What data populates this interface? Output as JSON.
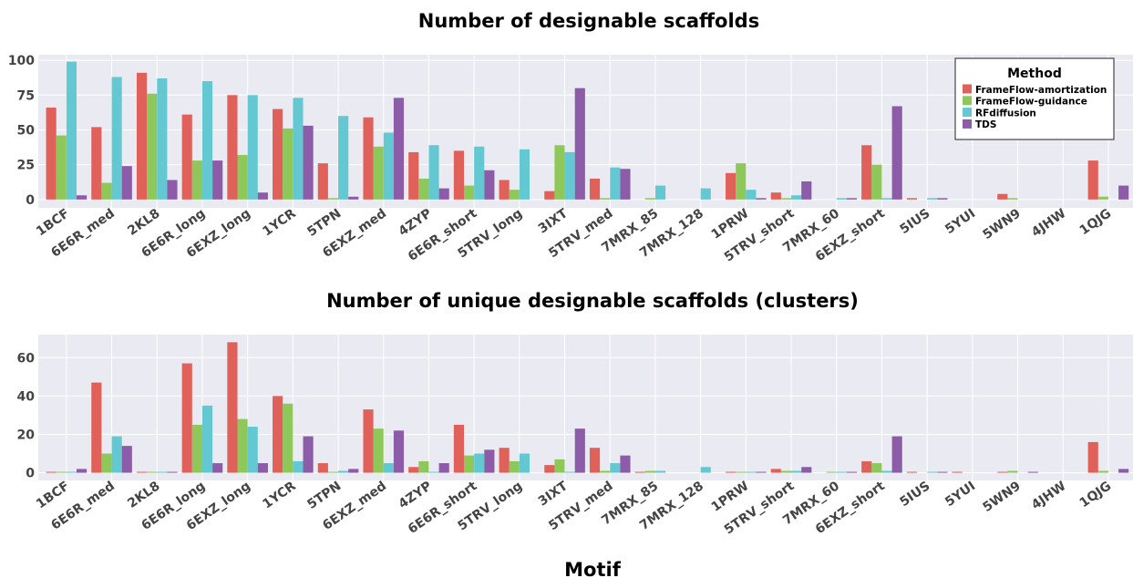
{
  "chart_data": [
    {
      "type": "bar",
      "title": "Number of designable scaffolds",
      "xlabel": "",
      "ylabel": "",
      "ylim": [
        -6,
        104
      ],
      "yticks": [
        0,
        25,
        50,
        75,
        100
      ],
      "grid": true,
      "legend": {
        "title": "Method",
        "placement": "top-right"
      },
      "categories": [
        "1BCF",
        "6E6R_med",
        "2KL8",
        "6E6R_long",
        "6EXZ_long",
        "1YCR",
        "5TPN",
        "6EXZ_med",
        "4ZYP",
        "6E6R_short",
        "5TRV_long",
        "3IXT",
        "5TRV_med",
        "7MRX_85",
        "7MRX_128",
        "1PRW",
        "5TRV_short",
        "7MRX_60",
        "6EXZ_short",
        "5IUS",
        "5YUI",
        "5WN9",
        "4JHW",
        "1QJG"
      ],
      "series": [
        {
          "name": "FrameFlow-amortization",
          "color": "#e0605a",
          "values": [
            66,
            52,
            91,
            61,
            75,
            65,
            26,
            59,
            34,
            35,
            14,
            6,
            15,
            0,
            0,
            19,
            5,
            0,
            39,
            1,
            0,
            4,
            0,
            28
          ]
        },
        {
          "name": "FrameFlow-guidance",
          "color": "#8fc85a",
          "values": [
            46,
            12,
            76,
            28,
            32,
            51,
            1,
            38,
            15,
            10,
            7,
            39,
            1,
            1,
            0,
            26,
            1,
            0,
            25,
            0,
            0,
            1,
            0,
            2
          ]
        },
        {
          "name": "RFdiffusion",
          "color": "#63c8d1",
          "values": [
            99,
            88,
            87,
            85,
            75,
            73,
            60,
            48,
            39,
            38,
            36,
            34,
            23,
            10,
            8,
            7,
            3,
            1,
            1,
            1,
            0,
            0,
            0,
            0
          ]
        },
        {
          "name": "TDS",
          "color": "#8d5ca8",
          "values": [
            3,
            24,
            14,
            28,
            5,
            53,
            2,
            73,
            8,
            21,
            0,
            80,
            22,
            0,
            0,
            1,
            13,
            1,
            67,
            1,
            0,
            0,
            0,
            10
          ]
        }
      ]
    },
    {
      "type": "bar",
      "title": "Number of unique designable scaffolds (clusters)",
      "xlabel": "Motif",
      "ylabel": "",
      "ylim": [
        -4,
        72
      ],
      "yticks": [
        0,
        20,
        40,
        60
      ],
      "grid": true,
      "categories": [
        "1BCF",
        "6E6R_med",
        "2KL8",
        "6E6R_long",
        "6EXZ_long",
        "1YCR",
        "5TPN",
        "6EXZ_med",
        "4ZYP",
        "6E6R_short",
        "5TRV_long",
        "3IXT",
        "5TRV_med",
        "7MRX_85",
        "7MRX_128",
        "1PRW",
        "5TRV_short",
        "7MRX_60",
        "6EXZ_short",
        "5IUS",
        "5YUI",
        "5WN9",
        "4JHW",
        "1QJG"
      ],
      "series": [
        {
          "name": "FrameFlow-amortization",
          "color": "#e0605a",
          "values": [
            0.5,
            47,
            0.5,
            57,
            68,
            40,
            5,
            33,
            3,
            25,
            13,
            4,
            13,
            0.5,
            0,
            0.5,
            2,
            0,
            6,
            0.5,
            0.5,
            0.5,
            0,
            16
          ]
        },
        {
          "name": "FrameFlow-guidance",
          "color": "#8fc85a",
          "values": [
            0.5,
            10,
            0.5,
            25,
            28,
            36,
            0.5,
            23,
            6,
            9,
            6,
            7,
            1,
            1,
            0,
            0.5,
            1,
            0.5,
            5,
            0,
            0,
            1,
            0,
            1
          ]
        },
        {
          "name": "RFdiffusion",
          "color": "#63c8d1",
          "values": [
            0.5,
            19,
            0.5,
            35,
            24,
            6,
            1,
            5,
            0.5,
            10,
            10,
            0.5,
            5,
            1,
            3,
            0.5,
            1,
            0.5,
            1,
            0.5,
            0,
            0,
            0,
            0
          ]
        },
        {
          "name": "TDS",
          "color": "#8d5ca8",
          "values": [
            2,
            14,
            0.5,
            5,
            5,
            19,
            2,
            22,
            5,
            12,
            0,
            23,
            9,
            0,
            0,
            0.5,
            3,
            0.5,
            19,
            0.5,
            0,
            0.5,
            0,
            2
          ]
        }
      ]
    }
  ]
}
